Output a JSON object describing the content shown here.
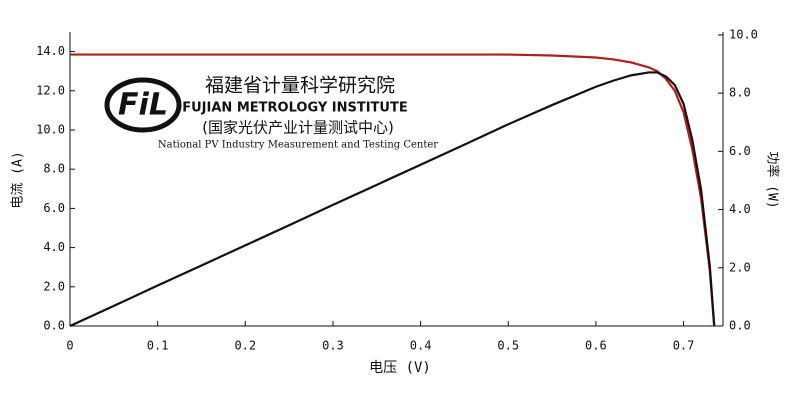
{
  "chart_data": {
    "type": "line",
    "x_label": "电压 (V)",
    "y_label": "电流 (A)",
    "y2_label": "功率 (W)",
    "x": [
      0,
      0.05,
      0.1,
      0.15,
      0.2,
      0.25,
      0.3,
      0.35,
      0.4,
      0.45,
      0.5,
      0.55,
      0.6,
      0.62,
      0.64,
      0.66,
      0.67,
      0.68,
      0.69,
      0.7,
      0.71,
      0.72,
      0.73,
      0.735
    ],
    "series": [
      {
        "color": "#b01e1e",
        "values": [
          13.85,
          13.85,
          13.85,
          13.85,
          13.85,
          13.85,
          13.85,
          13.85,
          13.85,
          13.85,
          13.85,
          13.8,
          13.7,
          13.6,
          13.45,
          13.2,
          13.0,
          12.6,
          12.0,
          10.9,
          9.0,
          6.5,
          2.8,
          0
        ]
      },
      {
        "color": "#111111",
        "axis": "y2",
        "values": [
          0,
          0.69,
          1.39,
          2.08,
          2.77,
          3.46,
          4.16,
          4.85,
          5.54,
          6.23,
          6.93,
          7.59,
          8.22,
          8.43,
          8.61,
          8.71,
          8.71,
          8.57,
          8.28,
          7.63,
          6.39,
          4.68,
          2.04,
          0
        ]
      }
    ],
    "xlim": [
      0,
      0.745
    ],
    "xticks": [
      0,
      0.1,
      0.2,
      0.3,
      0.4,
      0.5,
      0.6,
      0.7
    ],
    "ylim": [
      0,
      15
    ],
    "yticks": [
      {
        "value": 0,
        "label": "0.0"
      },
      {
        "value": 2,
        "label": "2.0"
      },
      {
        "value": 4,
        "label": "4.0"
      },
      {
        "value": 6,
        "label": "6.0"
      },
      {
        "value": 8,
        "label": "8.0"
      },
      {
        "value": 10,
        "label": "10.0"
      },
      {
        "value": 12,
        "label": "12.0"
      },
      {
        "value": 14,
        "label": "14.0"
      }
    ],
    "y2lim": [
      0,
      10.1
    ],
    "y2ticks": [
      {
        "value": 0,
        "label": "0.0"
      },
      {
        "value": 2,
        "label": "2.0"
      },
      {
        "value": 4,
        "label": "4.0"
      },
      {
        "value": 6,
        "label": "6.0"
      },
      {
        "value": 8,
        "label": "8.0"
      },
      {
        "value": 10,
        "label": "10.0"
      }
    ],
    "logo": {
      "mark": "FiL",
      "lines": [
        "福建省计量科学研究院",
        "FUJIAN METROLOGY INSTITUTE",
        "(国家光伏产业计量测试中心)",
        "National PV Industry Measurement and Testing Center"
      ]
    }
  }
}
